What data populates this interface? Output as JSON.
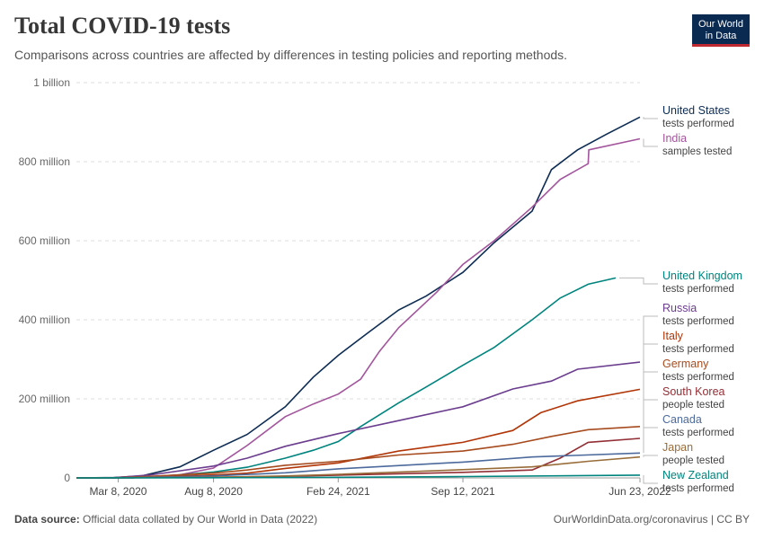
{
  "header": {
    "title": "Total COVID-19 tests",
    "subtitle": "Comparisons across countries are affected by differences in testing policies and reporting methods.",
    "logo_line1": "Our World",
    "logo_line2": "in Data"
  },
  "footer": {
    "source_label": "Data source:",
    "source_text": "Official data collated by Our World in Data (2022)",
    "right_text": "OurWorldinData.org/coronavirus | CC BY"
  },
  "chart_data": {
    "type": "line",
    "title": "Total COVID-19 tests",
    "subtitle": "Comparisons across countries are affected by differences in testing policies and reporting methods.",
    "x_axis": {
      "type": "date",
      "range": [
        "2020-01-01",
        "2022-06-23"
      ],
      "tick_labels": [
        {
          "date": "2020-03-08",
          "label": "Mar 8, 2020"
        },
        {
          "date": "2020-08-08",
          "label": "Aug 8, 2020"
        },
        {
          "date": "2021-02-24",
          "label": "Feb 24, 2021"
        },
        {
          "date": "2021-09-12",
          "label": "Sep 12, 2021"
        },
        {
          "date": "2022-06-23",
          "label": "Jun 23, 2022"
        }
      ]
    },
    "y_axis": {
      "range": [
        0,
        1000000000
      ],
      "tick_values": [
        0,
        200000000,
        400000000,
        600000000,
        800000000,
        1000000000
      ],
      "tick_labels": [
        "0",
        "200 million",
        "400 million",
        "600 million",
        "800 million",
        "1 billion"
      ],
      "grid": true
    },
    "legend": "right-end labels",
    "series": [
      {
        "name": "United States",
        "metric": "tests performed",
        "color": "#0d2c54",
        "points": [
          [
            "2020-01-01",
            0
          ],
          [
            "2020-03-01",
            1000000
          ],
          [
            "2020-04-15",
            5000000
          ],
          [
            "2020-06-15",
            28000000
          ],
          [
            "2020-08-08",
            70000000
          ],
          [
            "2020-10-01",
            110000000
          ],
          [
            "2020-12-01",
            180000000
          ],
          [
            "2021-01-15",
            255000000
          ],
          [
            "2021-02-24",
            310000000
          ],
          [
            "2021-04-15",
            370000000
          ],
          [
            "2021-06-01",
            425000000
          ],
          [
            "2021-07-15",
            460000000
          ],
          [
            "2021-09-12",
            520000000
          ],
          [
            "2021-11-01",
            595000000
          ],
          [
            "2022-01-01",
            675000000
          ],
          [
            "2022-02-01",
            780000000
          ],
          [
            "2022-03-15",
            830000000
          ],
          [
            "2022-05-01",
            870000000
          ],
          [
            "2022-06-23",
            913000000
          ]
        ]
      },
      {
        "name": "India",
        "metric": "samples tested",
        "color": "#a2559c",
        "points": [
          [
            "2020-01-01",
            0
          ],
          [
            "2020-04-01",
            500000
          ],
          [
            "2020-06-15",
            8000000
          ],
          [
            "2020-08-08",
            25000000
          ],
          [
            "2020-10-01",
            82000000
          ],
          [
            "2020-12-01",
            155000000
          ],
          [
            "2021-01-15",
            187000000
          ],
          [
            "2021-02-24",
            212000000
          ],
          [
            "2021-04-01",
            250000000
          ],
          [
            "2021-05-01",
            320000000
          ],
          [
            "2021-06-01",
            380000000
          ],
          [
            "2021-08-01",
            470000000
          ],
          [
            "2021-09-12",
            540000000
          ],
          [
            "2021-11-01",
            600000000
          ],
          [
            "2022-01-01",
            685000000
          ],
          [
            "2022-02-15",
            755000000
          ],
          [
            "2022-04-01",
            795000000
          ],
          [
            "2022-04-02",
            830000000
          ],
          [
            "2022-06-23",
            858000000
          ]
        ]
      },
      {
        "name": "United Kingdom",
        "metric": "tests performed",
        "color": "#00847e",
        "points": [
          [
            "2020-01-01",
            0
          ],
          [
            "2020-04-01",
            500000
          ],
          [
            "2020-06-01",
            6000000
          ],
          [
            "2020-08-08",
            15000000
          ],
          [
            "2020-10-01",
            27000000
          ],
          [
            "2020-12-01",
            50000000
          ],
          [
            "2021-01-15",
            70000000
          ],
          [
            "2021-02-24",
            92000000
          ],
          [
            "2021-04-01",
            130000000
          ],
          [
            "2021-06-01",
            190000000
          ],
          [
            "2021-07-15",
            230000000
          ],
          [
            "2021-09-12",
            285000000
          ],
          [
            "2021-11-01",
            330000000
          ],
          [
            "2022-01-01",
            400000000
          ],
          [
            "2022-02-15",
            455000000
          ],
          [
            "2022-04-01",
            490000000
          ],
          [
            "2022-05-15",
            506000000
          ]
        ]
      },
      {
        "name": "Russia",
        "metric": "tests performed",
        "color": "#6b3d8e",
        "points": [
          [
            "2020-01-01",
            0
          ],
          [
            "2020-03-01",
            500000
          ],
          [
            "2020-05-01",
            8000000
          ],
          [
            "2020-08-08",
            30000000
          ],
          [
            "2020-10-01",
            50000000
          ],
          [
            "2020-12-01",
            80000000
          ],
          [
            "2021-02-24",
            112000000
          ],
          [
            "2021-06-01",
            145000000
          ],
          [
            "2021-09-12",
            180000000
          ],
          [
            "2021-12-01",
            225000000
          ],
          [
            "2022-02-01",
            245000000
          ],
          [
            "2022-03-15",
            275000000
          ],
          [
            "2022-06-23",
            293000000
          ]
        ]
      },
      {
        "name": "Italy",
        "metric": "tests performed",
        "color": "#b13507",
        "points": [
          [
            "2020-01-01",
            0
          ],
          [
            "2020-03-01",
            100000
          ],
          [
            "2020-05-01",
            2500000
          ],
          [
            "2020-08-08",
            7500000
          ],
          [
            "2020-10-01",
            12000000
          ],
          [
            "2020-12-01",
            24000000
          ],
          [
            "2021-02-24",
            38000000
          ],
          [
            "2021-06-01",
            68000000
          ],
          [
            "2021-09-12",
            90000000
          ],
          [
            "2021-12-01",
            120000000
          ],
          [
            "2022-01-15",
            165000000
          ],
          [
            "2022-03-15",
            195000000
          ],
          [
            "2022-06-23",
            224000000
          ]
        ]
      },
      {
        "name": "Germany",
        "metric": "tests performed",
        "color": "#a64b1e",
        "points": [
          [
            "2020-01-01",
            0
          ],
          [
            "2020-03-01",
            200000
          ],
          [
            "2020-05-01",
            4000000
          ],
          [
            "2020-08-08",
            12000000
          ],
          [
            "2020-10-01",
            20000000
          ],
          [
            "2020-12-01",
            32000000
          ],
          [
            "2021-02-24",
            42000000
          ],
          [
            "2021-06-01",
            58000000
          ],
          [
            "2021-09-12",
            68000000
          ],
          [
            "2021-12-01",
            85000000
          ],
          [
            "2022-02-01",
            105000000
          ],
          [
            "2022-04-01",
            122000000
          ],
          [
            "2022-06-23",
            130000000
          ]
        ]
      },
      {
        "name": "South Korea",
        "metric": "people tested",
        "color": "#922e34",
        "points": [
          [
            "2020-01-01",
            0
          ],
          [
            "2020-03-01",
            100000
          ],
          [
            "2020-08-08",
            1500000
          ],
          [
            "2020-12-01",
            4000000
          ],
          [
            "2021-02-24",
            7000000
          ],
          [
            "2021-09-12",
            14000000
          ],
          [
            "2022-01-01",
            20000000
          ],
          [
            "2022-02-15",
            50000000
          ],
          [
            "2022-04-01",
            90000000
          ],
          [
            "2022-06-23",
            100000000
          ]
        ]
      },
      {
        "name": "Canada",
        "metric": "tests performed",
        "color": "#4c6a9c",
        "points": [
          [
            "2020-01-01",
            0
          ],
          [
            "2020-03-01",
            100000
          ],
          [
            "2020-08-08",
            5000000
          ],
          [
            "2020-12-01",
            13000000
          ],
          [
            "2021-02-24",
            23000000
          ],
          [
            "2021-09-12",
            40000000
          ],
          [
            "2022-01-01",
            53000000
          ],
          [
            "2022-06-23",
            63000000
          ]
        ]
      },
      {
        "name": "Japan",
        "metric": "people tested",
        "color": "#996d39",
        "points": [
          [
            "2020-01-01",
            0
          ],
          [
            "2020-08-08",
            1500000
          ],
          [
            "2020-12-01",
            5000000
          ],
          [
            "2021-02-24",
            9000000
          ],
          [
            "2021-09-12",
            21000000
          ],
          [
            "2022-01-01",
            28000000
          ],
          [
            "2022-04-01",
            42000000
          ],
          [
            "2022-06-23",
            53000000
          ]
        ]
      },
      {
        "name": "New Zealand",
        "metric": "tests performed",
        "color": "#00847e",
        "points": [
          [
            "2020-01-01",
            0
          ],
          [
            "2020-08-08",
            500000
          ],
          [
            "2021-02-24",
            1500000
          ],
          [
            "2021-09-12",
            3500000
          ],
          [
            "2022-06-23",
            7000000
          ]
        ]
      }
    ]
  }
}
